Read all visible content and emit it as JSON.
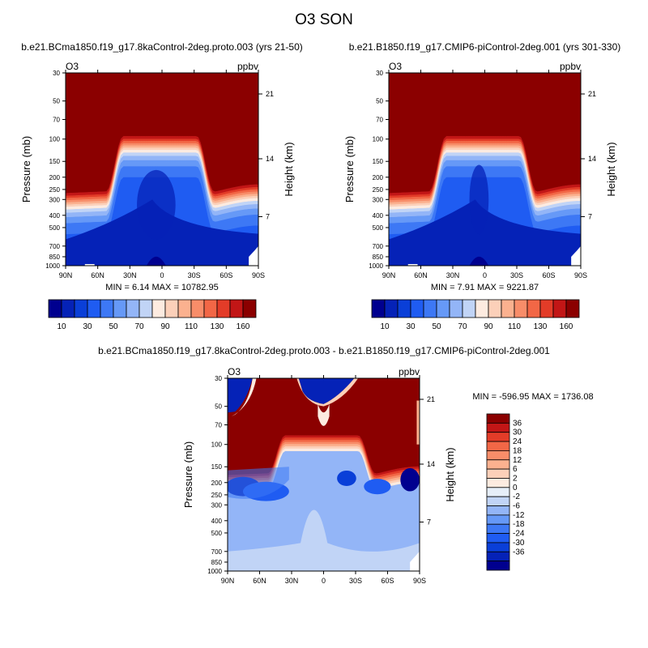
{
  "figure": {
    "title": "O3 SON"
  },
  "colors": {
    "top_scale": [
      "#00008f",
      "#0522b7",
      "#0a3fd8",
      "#1f5cf2",
      "#3d78f5",
      "#6699f7",
      "#93b5f7",
      "#c1d4f6",
      "#fdebe0",
      "#fcd0b9",
      "#fbb18f",
      "#f88d69",
      "#f26746",
      "#e33c28",
      "#c21616",
      "#8b0000"
    ],
    "diff_scale": [
      "#00008f",
      "#0522b7",
      "#0a3fd8",
      "#1f5cf2",
      "#3d78f5",
      "#6699f7",
      "#93b5f7",
      "#c1d4f6",
      "#e6eef8",
      "#fdebe0",
      "#fcd0b9",
      "#fbb18f",
      "#f88d69",
      "#f26746",
      "#e33c28",
      "#c21616",
      "#8b0000"
    ]
  },
  "chart_data": [
    {
      "type": "heatmap",
      "title": "b.e21.BCma1850.f19_g17.8kaControl-2deg.proto.003 (yrs 21-50)",
      "variable_label": "O3",
      "units_label": "ppbv",
      "ylabel": "Pressure (mb)",
      "ylabel_right": "Height (km)",
      "x_ticks": [
        "90N",
        "60N",
        "30N",
        "0",
        "30S",
        "60S",
        "90S"
      ],
      "y_ticks": [
        "30",
        "50",
        "70",
        "100",
        "150",
        "200",
        "250",
        "300",
        "400",
        "500",
        "700",
        "850",
        "1000"
      ],
      "y_right_ticks": [
        "21",
        "14",
        "7"
      ],
      "stats": "MIN =   6.14  MAX = 10782.95",
      "colorbar": {
        "orientation": "horizontal",
        "labels": [
          "10",
          "30",
          "50",
          "70",
          "90",
          "110",
          "130",
          "160"
        ]
      },
      "tropopause_top_level_mb": 95,
      "tropopause_edge_level_mb": 260
    },
    {
      "type": "heatmap",
      "title": "b.e21.B1850.f19_g17.CMIP6-piControl-2deg.001 (yrs 301-330)",
      "variable_label": "O3",
      "units_label": "ppbv",
      "ylabel": "Pressure (mb)",
      "ylabel_right": "Height (km)",
      "x_ticks": [
        "90N",
        "60N",
        "30N",
        "0",
        "30S",
        "60S",
        "90S"
      ],
      "y_ticks": [
        "30",
        "50",
        "70",
        "100",
        "150",
        "200",
        "250",
        "300",
        "400",
        "500",
        "700",
        "850",
        "1000"
      ],
      "y_right_ticks": [
        "21",
        "14",
        "7"
      ],
      "stats": "MIN =   7.91  MAX = 9221.87",
      "colorbar": {
        "orientation": "horizontal",
        "labels": [
          "10",
          "30",
          "50",
          "70",
          "90",
          "110",
          "130",
          "160"
        ]
      },
      "tropopause_top_level_mb": 95,
      "tropopause_edge_level_mb": 260
    },
    {
      "type": "heatmap",
      "title": "b.e21.BCma1850.f19_g17.8kaControl-2deg.proto.003 - b.e21.B1850.f19_g17.CMIP6-piControl-2deg.001",
      "variable_label": "O3",
      "units_label": "ppbv",
      "ylabel": "Pressure (mb)",
      "ylabel_right": "Height (km)",
      "x_ticks": [
        "90N",
        "60N",
        "30N",
        "0",
        "30S",
        "60S",
        "90S"
      ],
      "y_ticks": [
        "30",
        "50",
        "70",
        "100",
        "150",
        "200",
        "250",
        "300",
        "400",
        "500",
        "700",
        "850",
        "1000"
      ],
      "y_right_ticks": [
        "21",
        "14",
        "7"
      ],
      "stats": "MIN = -596.95  MAX = 1736.08",
      "colorbar": {
        "orientation": "vertical",
        "labels": [
          "36",
          "30",
          "24",
          "18",
          "12",
          "6",
          "2",
          "0",
          "-2",
          "-6",
          "-12",
          "-18",
          "-24",
          "-30",
          "-36"
        ]
      }
    }
  ]
}
